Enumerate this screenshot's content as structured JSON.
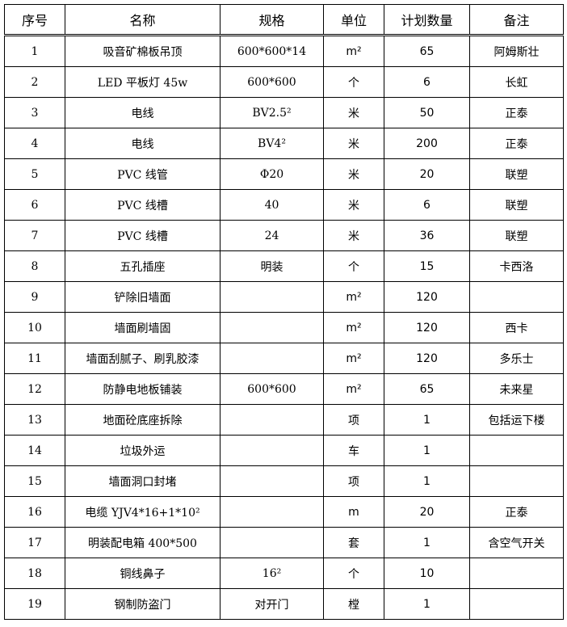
{
  "headers": [
    "序号",
    "名称",
    "规格",
    "单位",
    "计划数量",
    "备注"
  ],
  "rows": [
    [
      "1",
      "吸音矿棉板吊顶",
      "600*600*14",
      "m²",
      "65",
      "阿姆斯壮"
    ],
    [
      "2",
      "LED 平板灯 45w",
      "600*600",
      "个",
      "6",
      "长虹"
    ],
    [
      "3",
      "电线",
      "BV2.5²",
      "米",
      "50",
      "正泰"
    ],
    [
      "4",
      "电线",
      "BV4²",
      "米",
      "200",
      "正泰"
    ],
    [
      "5",
      "PVC 线管",
      "Φ20",
      "米",
      "20",
      "联塑"
    ],
    [
      "6",
      "PVC 线槽",
      "40",
      "米",
      "6",
      "联塑"
    ],
    [
      "7",
      "PVC 线槽",
      "24",
      "米",
      "36",
      "联塑"
    ],
    [
      "8",
      "五孔插座",
      "明装",
      "个",
      "15",
      "卡西洛"
    ],
    [
      "9",
      "铲除旧墙面",
      "",
      "m²",
      "120",
      ""
    ],
    [
      "10",
      "墙面刷墙固",
      "",
      "m²",
      "120",
      "西卡"
    ],
    [
      "11",
      "墙面刮腻子、刷乳胶漆",
      "",
      "m²",
      "120",
      "多乐士"
    ],
    [
      "12",
      "防静电地板铺装",
      "600*600",
      "m²",
      "65",
      "未来星"
    ],
    [
      "13",
      "地面砼底座拆除",
      "",
      "项",
      "1",
      "包括运下楼"
    ],
    [
      "14",
      "垃圾外运",
      "",
      "车",
      "1",
      ""
    ],
    [
      "15",
      "墙面洞口封堵",
      "",
      "项",
      "1",
      ""
    ],
    [
      "16",
      "电缆 YJV4*16+1*10²",
      "",
      "m",
      "20",
      "正泰"
    ],
    [
      "17",
      "明装配电箱 400*500",
      "",
      "套",
      "1",
      "含空气开关"
    ],
    [
      "18",
      "铜线鼻子",
      "16²",
      "个",
      "10",
      ""
    ],
    [
      "19",
      "钢制防盗门",
      "对开门",
      "樘",
      "1",
      ""
    ]
  ]
}
